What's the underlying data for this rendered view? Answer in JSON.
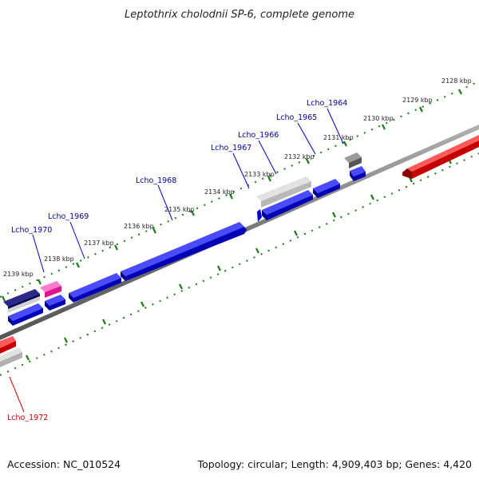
{
  "title": "Leptothrix cholodnii SP-6, complete genome",
  "footer": {
    "accession": "Accession: NC_010524",
    "summary": "Topology: circular; Length: 4,909,403 bp; Genes: 4,420"
  },
  "colors": {
    "forward_gene": "#0000ee",
    "reverse_gene": "#ee0000",
    "pseudo_gene": "#bbbbbb",
    "rna_gene": "#ee1199",
    "dark_gene": "#000066",
    "backbone": "#777777",
    "ticks": "#006600",
    "label_forward": "#0000aa",
    "label_reverse": "#cc0000"
  },
  "scale_labels": [
    "2128 kbp",
    "2129 kbp",
    "2130 kbp",
    "2131 kbp",
    "2132 kbp",
    "2133 kbp",
    "2134 kbp",
    "2135 kbp",
    "2136 kbp",
    "2137 kbp",
    "2138 kbp",
    "2139 kbp"
  ],
  "gene_labels": [
    "Lcho_1964",
    "Lcho_1965",
    "Lcho_1966",
    "Lcho_1967",
    "Lcho_1968",
    "Lcho_1969",
    "Lcho_1970",
    "Lcho_1972"
  ]
}
